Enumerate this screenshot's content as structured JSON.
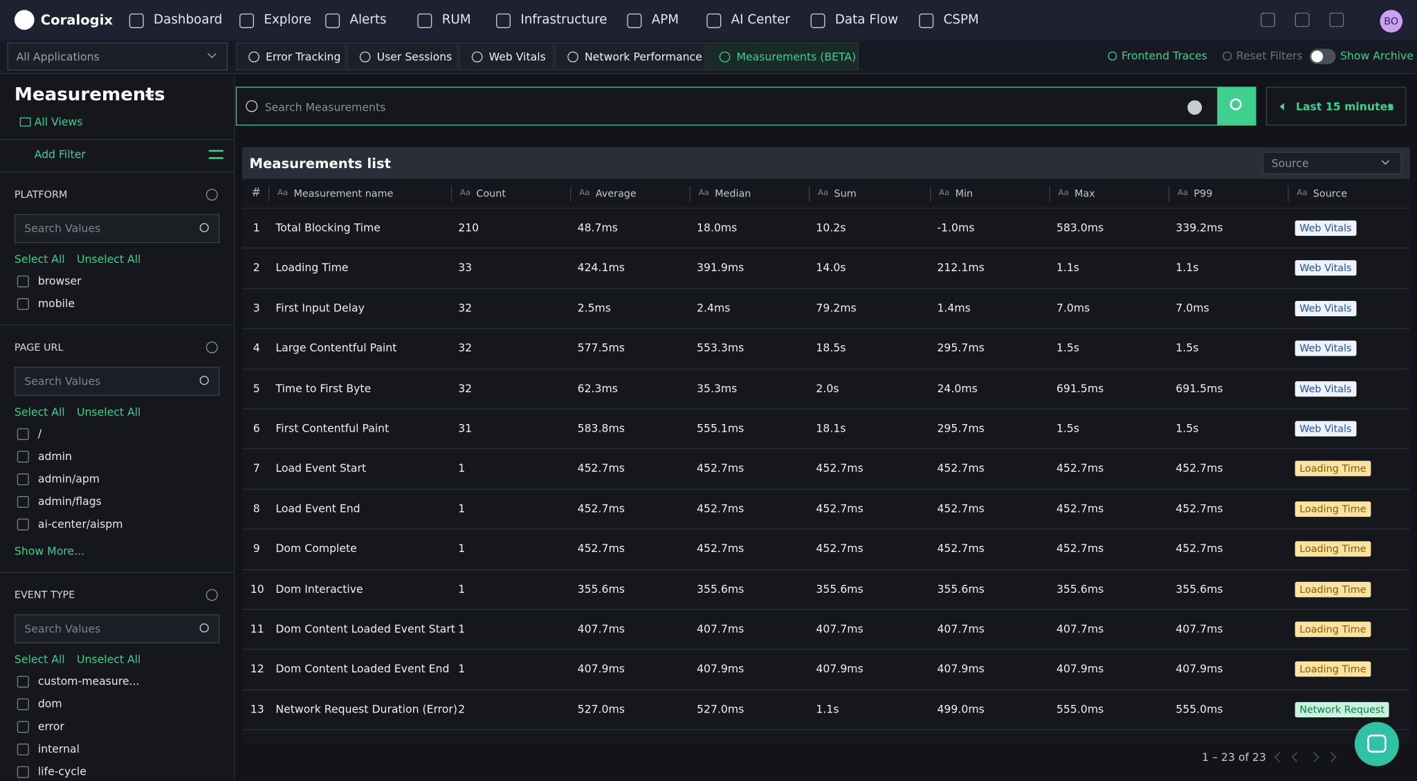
{
  "nav": {
    "brand": "Coralogix",
    "menu": [
      "Dashboard",
      "Explore",
      "Alerts",
      "RUM",
      "Infrastructure",
      "APM",
      "AI Center",
      "Data Flow",
      "CSPM"
    ],
    "avatar": "BO"
  },
  "subbar": {
    "app_select": "All Applications",
    "tabs": [
      "Error Tracking",
      "User Sessions",
      "Web Vitals",
      "Network Performance",
      "Measurements (BETA)"
    ],
    "links": [
      "Frontend Traces",
      "Reset Filters",
      "Show Archive"
    ]
  },
  "sidebar": {
    "title": "Measurements",
    "all_views": "All Views",
    "add_filter": "Add Filter",
    "sections": [
      {
        "title": "PLATFORM",
        "search_placeholder": "Search Values",
        "select_all": "Select All",
        "unselect_all": "Unselect All",
        "options": [
          "browser",
          "mobile"
        ]
      },
      {
        "title": "PAGE URL",
        "search_placeholder": "Search Values",
        "select_all": "Select All",
        "unselect_all": "Unselect All",
        "options": [
          "/",
          "admin",
          "admin/apm",
          "admin/flags",
          "ai-center/aispm"
        ],
        "show_more": "Show More..."
      },
      {
        "title": "EVENT TYPE",
        "search_placeholder": "Search Values",
        "select_all": "Select All",
        "unselect_all": "Unselect All",
        "options": [
          "custom-measure...",
          "dom",
          "error",
          "internal",
          "life-cycle"
        ]
      }
    ]
  },
  "search": {
    "placeholder": "Search Measurements",
    "time_range": "Last 15 minutes"
  },
  "table": {
    "title": "Measurements list",
    "source_select": "Source",
    "header_icon": "Aa",
    "columns": [
      "#",
      "Measurement name",
      "Count",
      "Average",
      "Median",
      "Sum",
      "Min",
      "Max",
      "P99",
      "Source"
    ],
    "rows": [
      [
        "1",
        "Total Blocking Time",
        "210",
        "48.7ms",
        "18.0ms",
        "10.2s",
        "-1.0ms",
        "583.0ms",
        "339.2ms",
        "Web Vitals"
      ],
      [
        "2",
        "Loading Time",
        "33",
        "424.1ms",
        "391.9ms",
        "14.0s",
        "212.1ms",
        "1.1s",
        "1.1s",
        "Web Vitals"
      ],
      [
        "3",
        "First Input Delay",
        "32",
        "2.5ms",
        "2.4ms",
        "79.2ms",
        "1.4ms",
        "7.0ms",
        "7.0ms",
        "Web Vitals"
      ],
      [
        "4",
        "Large Contentful Paint",
        "32",
        "577.5ms",
        "553.3ms",
        "18.5s",
        "295.7ms",
        "1.5s",
        "1.5s",
        "Web Vitals"
      ],
      [
        "5",
        "Time to First Byte",
        "32",
        "62.3ms",
        "35.3ms",
        "2.0s",
        "24.0ms",
        "691.5ms",
        "691.5ms",
        "Web Vitals"
      ],
      [
        "6",
        "First Contentful Paint",
        "31",
        "583.8ms",
        "555.1ms",
        "18.1s",
        "295.7ms",
        "1.5s",
        "1.5s",
        "Web Vitals"
      ],
      [
        "7",
        "Load Event Start",
        "1",
        "452.7ms",
        "452.7ms",
        "452.7ms",
        "452.7ms",
        "452.7ms",
        "452.7ms",
        "Loading Time"
      ],
      [
        "8",
        "Load Event End",
        "1",
        "452.7ms",
        "452.7ms",
        "452.7ms",
        "452.7ms",
        "452.7ms",
        "452.7ms",
        "Loading Time"
      ],
      [
        "9",
        "Dom Complete",
        "1",
        "452.7ms",
        "452.7ms",
        "452.7ms",
        "452.7ms",
        "452.7ms",
        "452.7ms",
        "Loading Time"
      ],
      [
        "10",
        "Dom Interactive",
        "1",
        "355.6ms",
        "355.6ms",
        "355.6ms",
        "355.6ms",
        "355.6ms",
        "355.6ms",
        "Loading Time"
      ],
      [
        "11",
        "Dom Content Loaded Event Start",
        "1",
        "407.7ms",
        "407.7ms",
        "407.7ms",
        "407.7ms",
        "407.7ms",
        "407.7ms",
        "Loading Time"
      ],
      [
        "12",
        "Dom Content Loaded Event End",
        "1",
        "407.9ms",
        "407.9ms",
        "407.9ms",
        "407.9ms",
        "407.9ms",
        "407.9ms",
        "Loading Time"
      ],
      [
        "13",
        "Network Request Duration (Error)",
        "2",
        "527.0ms",
        "527.0ms",
        "1.1s",
        "499.0ms",
        "555.0ms",
        "555.0ms",
        "Network Request"
      ]
    ],
    "source_colors": {
      "Web Vitals": {
        "bg": "#eef3ff",
        "fg": "#1e4fb8"
      },
      "Loading Time": {
        "bg": "#fbe3a4",
        "fg": "#8a5a00"
      },
      "Network Request": {
        "bg": "#c9f2dd",
        "fg": "#0d7a47"
      }
    },
    "pagination": "1 – 23 of 23"
  }
}
